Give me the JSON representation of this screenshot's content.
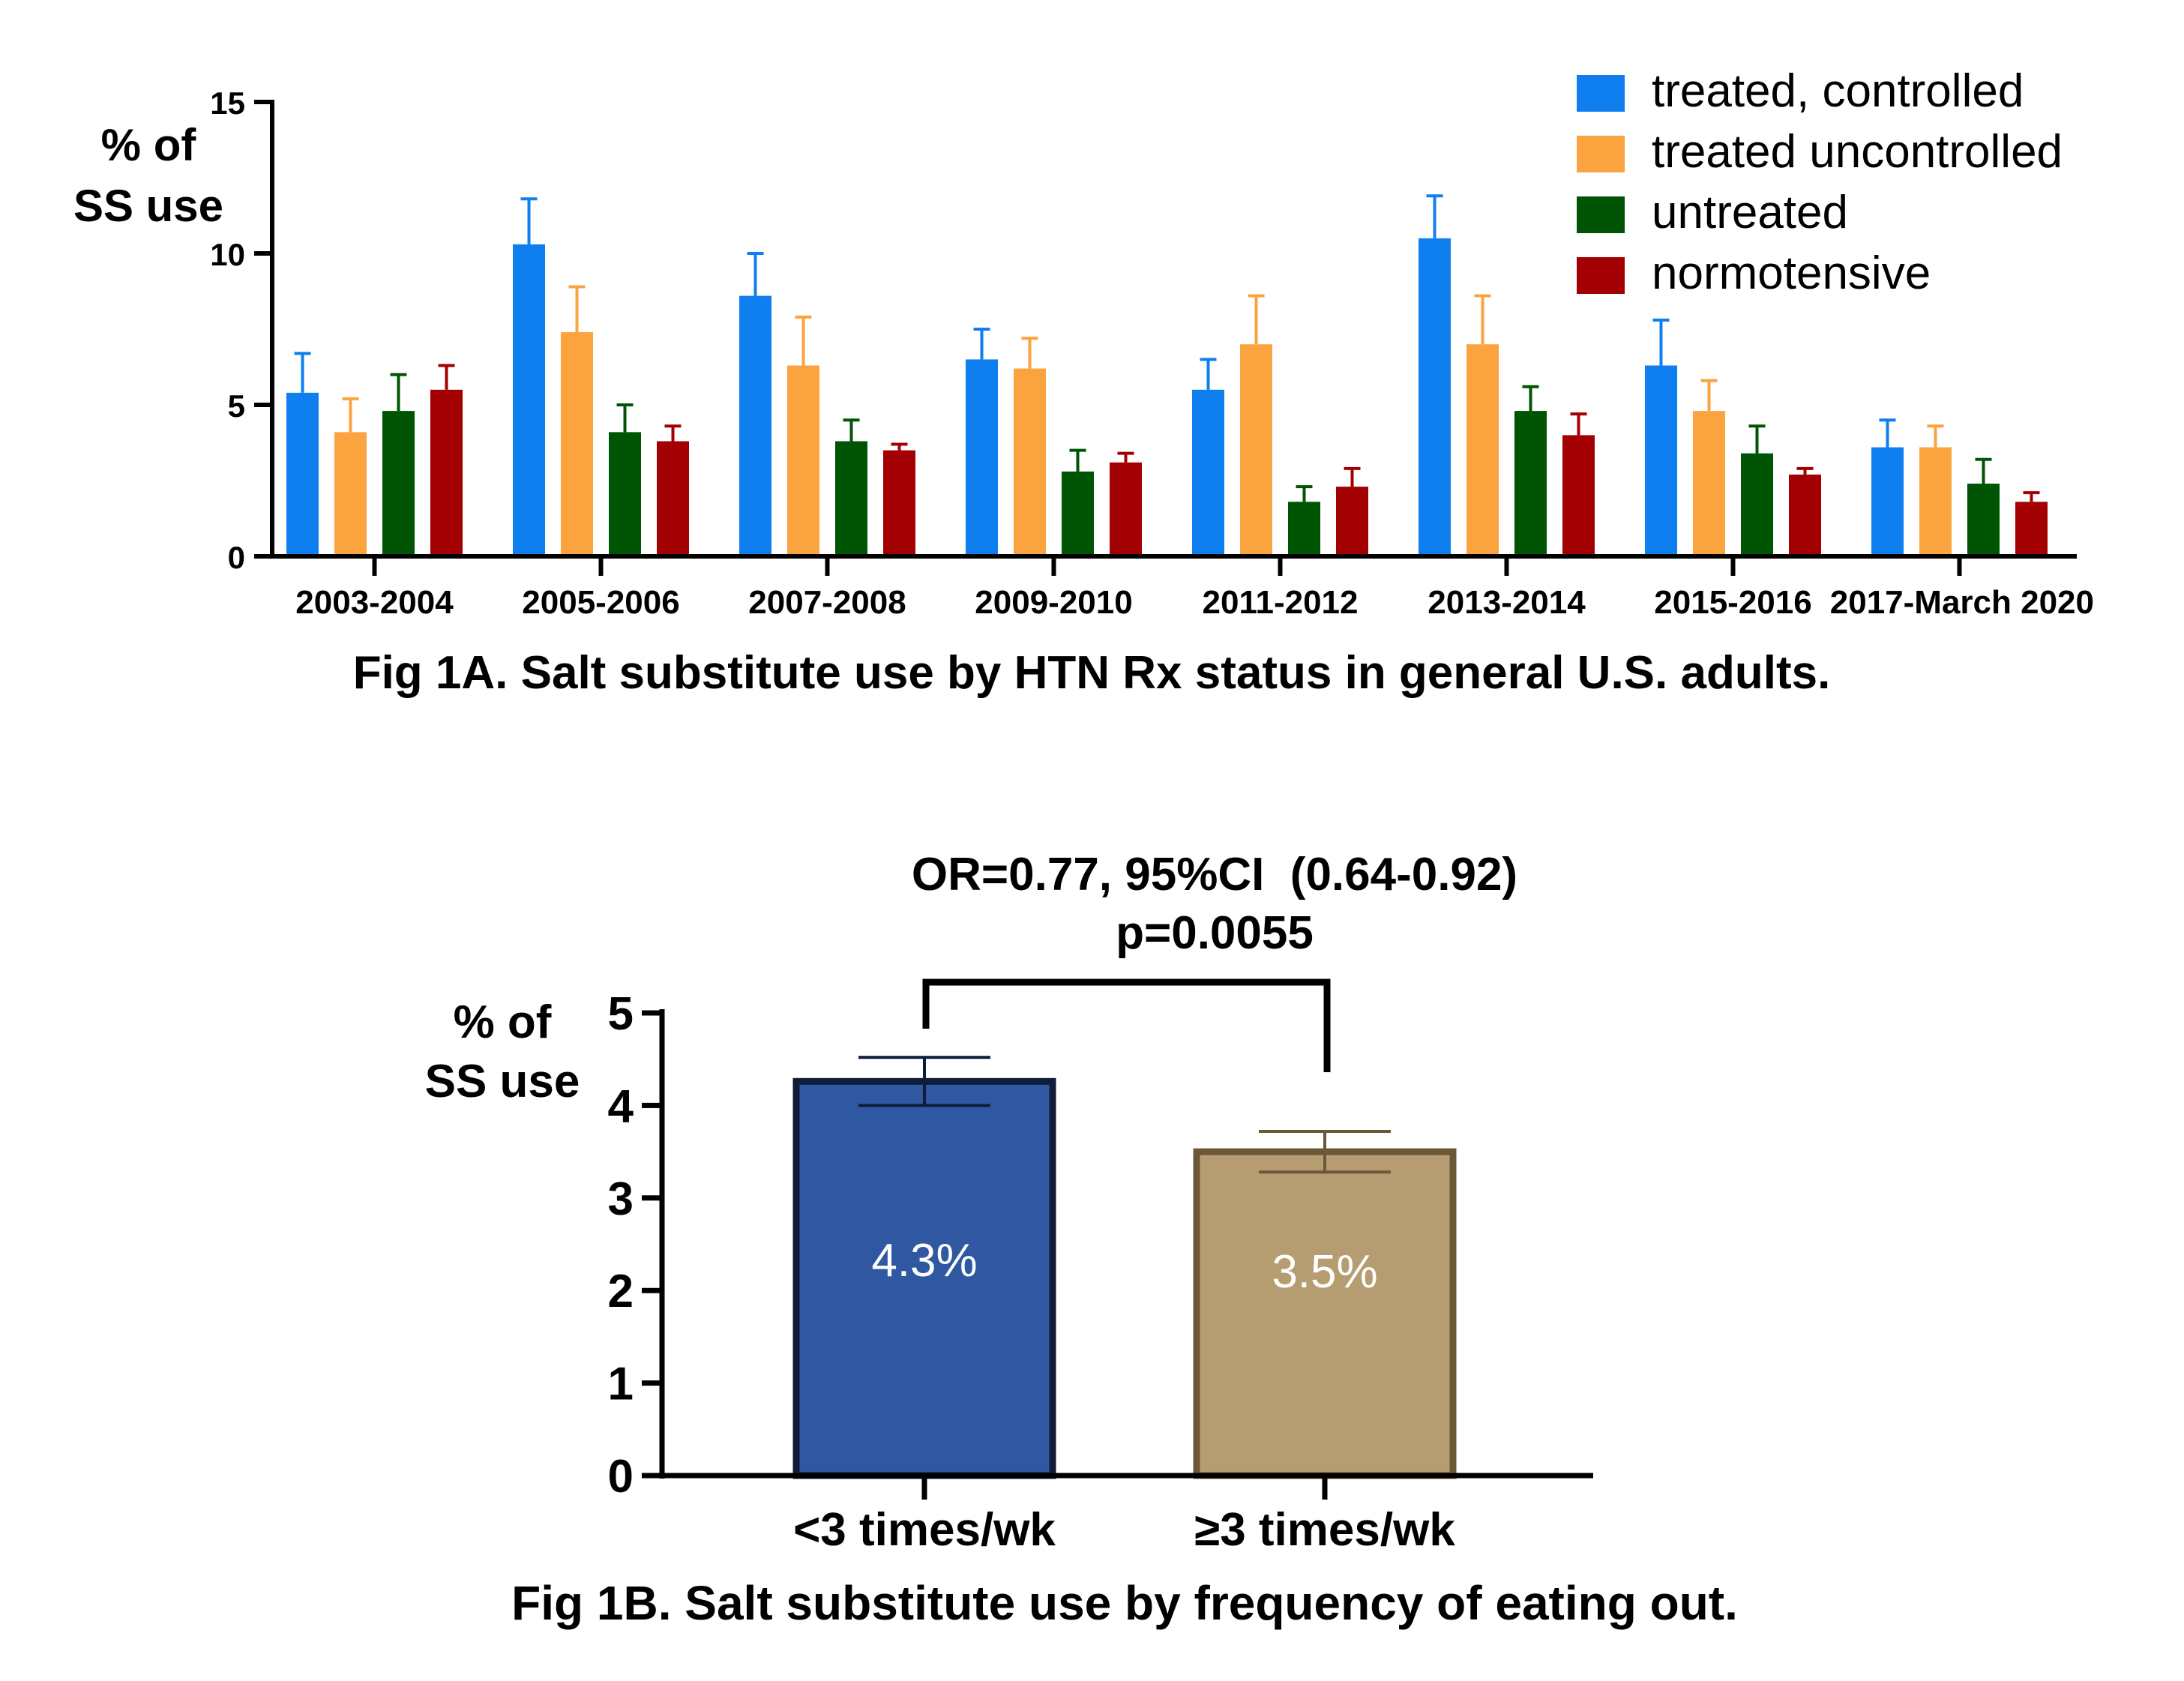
{
  "chart_data": [
    {
      "type": "bar",
      "title": "Fig 1A. Salt substitute use by HTN Rx status in general U.S. adults.",
      "ylabel_line1": "% of",
      "ylabel_line2": "SS use",
      "ylim": [
        0,
        15
      ],
      "yticks": [
        0,
        5,
        10,
        15
      ],
      "categories": [
        "2003-2004",
        "2005-2006",
        "2007-2008",
        "2009-2010",
        "2011-2012",
        "2013-2014",
        "2015-2016",
        "2017-March 2020"
      ],
      "legend_position": "top-right",
      "series": [
        {
          "name": "treated, controlled",
          "color": "#0f7ff0",
          "values": [
            5.4,
            10.3,
            8.6,
            6.5,
            5.5,
            10.5,
            6.3,
            3.6
          ],
          "err": [
            1.3,
            1.5,
            1.4,
            1.0,
            1.0,
            1.4,
            1.5,
            0.9
          ]
        },
        {
          "name": "treated uncontrolled",
          "color": "#fba43f",
          "values": [
            4.1,
            7.4,
            6.3,
            6.2,
            7.0,
            7.0,
            4.8,
            3.6
          ],
          "err": [
            1.1,
            1.5,
            1.6,
            1.0,
            1.6,
            1.6,
            1.0,
            0.7
          ]
        },
        {
          "name": "untreated",
          "color": "#005504",
          "values": [
            4.8,
            4.1,
            3.8,
            2.8,
            1.8,
            4.8,
            3.4,
            2.4
          ],
          "err": [
            1.2,
            0.9,
            0.7,
            0.7,
            0.5,
            0.8,
            0.9,
            0.8
          ]
        },
        {
          "name": "normotensive",
          "color": "#a30003",
          "values": [
            5.5,
            3.8,
            3.5,
            3.1,
            2.3,
            4.0,
            2.7,
            1.8
          ],
          "err": [
            0.8,
            0.5,
            0.2,
            0.3,
            0.6,
            0.7,
            0.2,
            0.3
          ]
        }
      ]
    },
    {
      "type": "bar",
      "title": "Fig 1B. Salt substitute use by frequency of eating out.",
      "ylabel_line1": "% of",
      "ylabel_line2": "SS use",
      "ylim": [
        0,
        5
      ],
      "yticks": [
        0,
        1,
        2,
        3,
        4,
        5
      ],
      "categories": [
        "<3 times/wk",
        "≥3 times/wk"
      ],
      "values": [
        4.26,
        3.5
      ],
      "err": [
        0.26,
        0.22
      ],
      "bar_labels": [
        "4.3%",
        "3.5%"
      ],
      "fill_colors": [
        "#2f57a2",
        "#b69d71"
      ],
      "edge_colors": [
        "#0f1d3b",
        "#6a5837"
      ],
      "annotation_line1": "OR=0.77, 95%CI  (0.64-0.92)",
      "annotation_line2": "p=0.0055"
    }
  ]
}
